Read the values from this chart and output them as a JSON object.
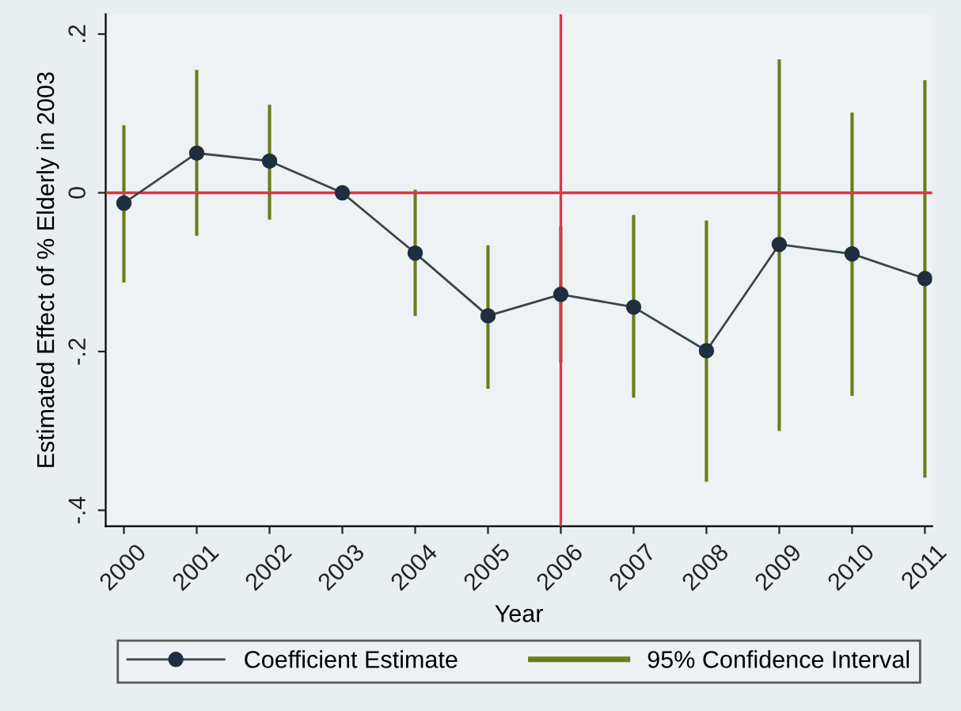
{
  "chart_data": {
    "type": "line",
    "xlabel": "Year",
    "ylabel": "Estimated Effect of % Elderly in 2003",
    "x": [
      2000,
      2001,
      2002,
      2003,
      2004,
      2005,
      2006,
      2007,
      2008,
      2009,
      2010,
      2011
    ],
    "series": [
      {
        "name": "Coefficient Estimate",
        "color": "#1f2f3f",
        "marker": "circle",
        "values": [
          -0.013,
          0.05,
          0.04,
          0.0,
          -0.076,
          -0.155,
          -0.128,
          -0.144,
          -0.199,
          -0.065,
          -0.077,
          -0.108
        ]
      },
      {
        "name": "95% Confidence Interval",
        "type": "bar",
        "color": "#6b7d1a",
        "base": [
          -0.113,
          -0.054,
          -0.034,
          null,
          -0.155,
          -0.247,
          -0.214,
          -0.258,
          -0.364,
          -0.3,
          -0.256,
          -0.359
        ],
        "values": [
          0.198,
          0.209,
          0.145,
          null,
          0.159,
          0.181,
          0.172,
          0.23,
          0.329,
          0.468,
          0.357,
          0.501
        ]
      }
    ],
    "xlim": [
      1999.75,
      2011.1
    ],
    "xticks": [
      2000,
      2001,
      2002,
      2003,
      2004,
      2005,
      2006,
      2007,
      2008,
      2009,
      2010,
      2011
    ],
    "ylim": [
      -0.42,
      0.225
    ],
    "yticks": [
      {
        "value": -0.4,
        "label": "-.4"
      },
      {
        "value": -0.2,
        "label": "-.2"
      },
      0,
      {
        "value": 0.2,
        "label": ".2"
      }
    ],
    "ref_lines": [
      {
        "axis": "y",
        "value": 0,
        "color": "#e0344a"
      },
      {
        "axis": "x",
        "value": 2006,
        "color": "#e0344a"
      }
    ],
    "grid": false,
    "legend": "bottom"
  }
}
